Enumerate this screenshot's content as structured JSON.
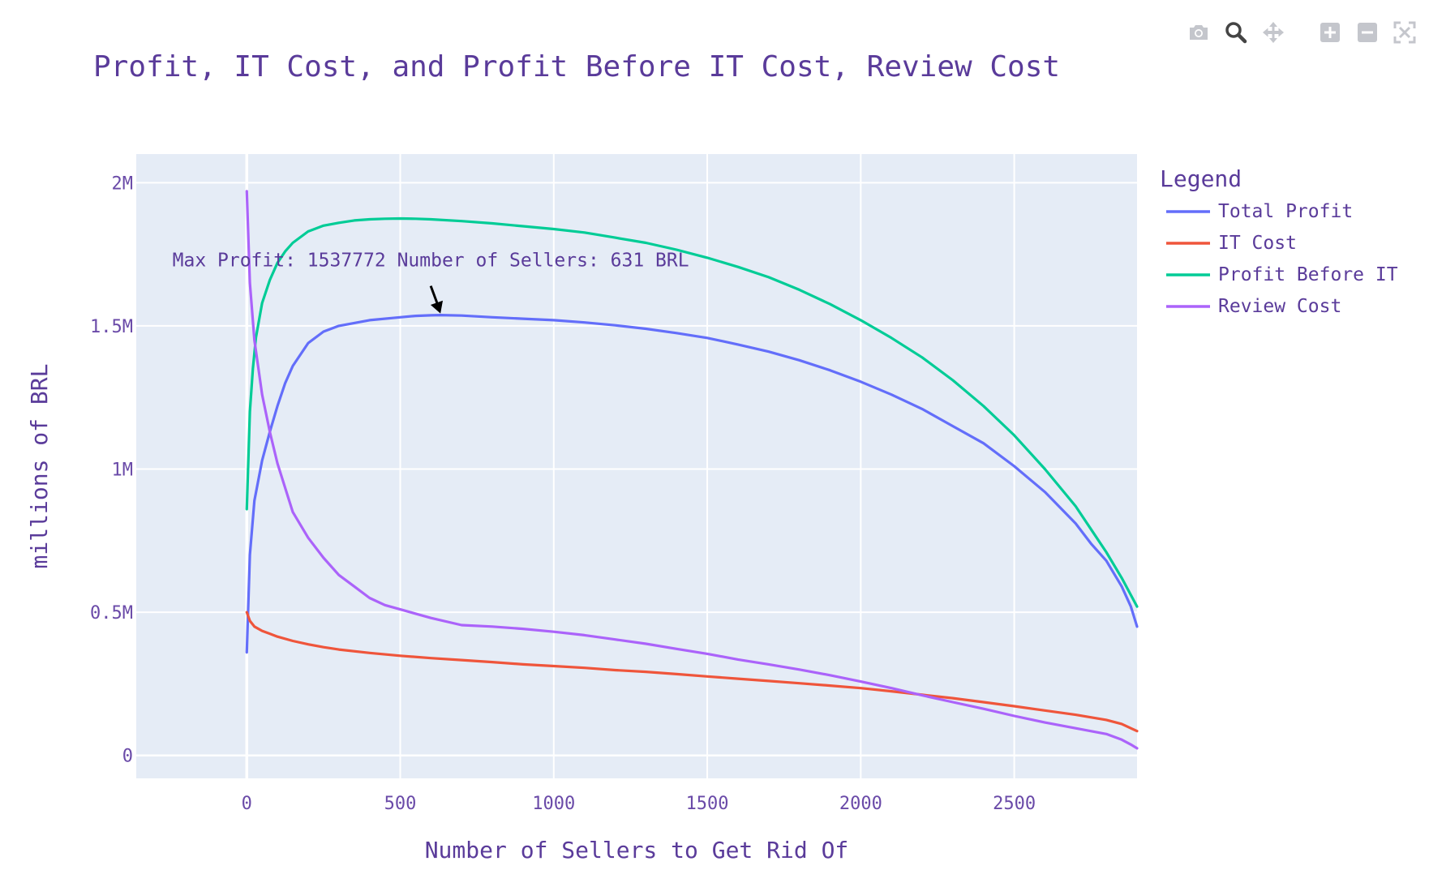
{
  "modebar": {
    "icons": [
      "camera-icon",
      "zoom-icon",
      "pan-icon",
      "zoom-in-icon",
      "zoom-out-icon",
      "autoscale-icon"
    ]
  },
  "chart_data": {
    "type": "line",
    "title": "Profit, IT Cost, and Profit Before IT Cost, Review Cost",
    "xlabel": "Number of Sellers to Get Rid Of",
    "ylabel": "millions of BRL",
    "xlim": [
      -360,
      2900
    ],
    "ylim": [
      -80000,
      2100000
    ],
    "grid": true,
    "x_ticks": [
      {
        "value": 0,
        "label": "0"
      },
      {
        "value": 500,
        "label": "500"
      },
      {
        "value": 1000,
        "label": "1000"
      },
      {
        "value": 1500,
        "label": "1500"
      },
      {
        "value": 2000,
        "label": "2000"
      },
      {
        "value": 2500,
        "label": "2500"
      }
    ],
    "y_ticks": [
      {
        "value": 0,
        "label": "0"
      },
      {
        "value": 500000,
        "label": "0.5M"
      },
      {
        "value": 1000000,
        "label": "1M"
      },
      {
        "value": 1500000,
        "label": "1.5M"
      },
      {
        "value": 2000000,
        "label": "2M"
      }
    ],
    "legend": {
      "title": "Legend",
      "position": "right"
    },
    "series": [
      {
        "name": "Total Profit",
        "color": "#636efa",
        "x": [
          0,
          10,
          25,
          50,
          75,
          100,
          125,
          150,
          200,
          250,
          300,
          350,
          400,
          500,
          550,
          600,
          631,
          700,
          800,
          900,
          1000,
          1100,
          1200,
          1300,
          1400,
          1500,
          1600,
          1700,
          1800,
          1900,
          2000,
          2100,
          2200,
          2300,
          2400,
          2500,
          2600,
          2700,
          2750,
          2800,
          2850,
          2880,
          2900
        ],
        "y": [
          360000,
          700000,
          890000,
          1030000,
          1130000,
          1220000,
          1300000,
          1360000,
          1440000,
          1480000,
          1500000,
          1510000,
          1520000,
          1530000,
          1535000,
          1537000,
          1537772,
          1536000,
          1530000,
          1525000,
          1520000,
          1512000,
          1502000,
          1490000,
          1475000,
          1458000,
          1435000,
          1410000,
          1380000,
          1345000,
          1305000,
          1260000,
          1210000,
          1150000,
          1090000,
          1010000,
          920000,
          810000,
          740000,
          680000,
          590000,
          520000,
          450000
        ]
      },
      {
        "name": "IT Cost",
        "color": "#ef553b",
        "x": [
          0,
          10,
          25,
          50,
          75,
          100,
          150,
          200,
          250,
          300,
          400,
          500,
          600,
          700,
          800,
          900,
          1000,
          1100,
          1200,
          1300,
          1400,
          1500,
          1600,
          1700,
          1800,
          1900,
          2000,
          2100,
          2200,
          2300,
          2400,
          2500,
          2600,
          2700,
          2800,
          2850,
          2900
        ],
        "y": [
          500000,
          470000,
          450000,
          435000,
          425000,
          415000,
          400000,
          388000,
          378000,
          370000,
          358000,
          348000,
          340000,
          333000,
          326000,
          318000,
          312000,
          306000,
          298000,
          292000,
          284000,
          276000,
          268000,
          260000,
          252000,
          244000,
          235000,
          224000,
          212000,
          200000,
          186000,
          172000,
          157000,
          142000,
          124000,
          110000,
          85000
        ]
      },
      {
        "name": "Profit Before IT",
        "color": "#00cc96",
        "x": [
          0,
          10,
          20,
          30,
          50,
          75,
          100,
          125,
          150,
          200,
          250,
          300,
          350,
          400,
          450,
          500,
          550,
          600,
          700,
          800,
          900,
          1000,
          1100,
          1200,
          1300,
          1400,
          1500,
          1600,
          1700,
          1800,
          1900,
          2000,
          2100,
          2200,
          2300,
          2400,
          2500,
          2600,
          2700,
          2750,
          2800,
          2850,
          2900
        ],
        "y": [
          860000,
          1200000,
          1350000,
          1460000,
          1580000,
          1660000,
          1720000,
          1760000,
          1790000,
          1830000,
          1850000,
          1860000,
          1868000,
          1872000,
          1874000,
          1875000,
          1874000,
          1872000,
          1866000,
          1858000,
          1848000,
          1838000,
          1826000,
          1808000,
          1790000,
          1766000,
          1738000,
          1706000,
          1670000,
          1626000,
          1576000,
          1520000,
          1458000,
          1390000,
          1310000,
          1220000,
          1118000,
          1000000,
          870000,
          790000,
          710000,
          620000,
          520000
        ]
      },
      {
        "name": "Review Cost",
        "color": "#ab63fa",
        "x": [
          0,
          10,
          25,
          50,
          75,
          100,
          150,
          200,
          250,
          300,
          350,
          400,
          450,
          500,
          600,
          700,
          800,
          900,
          1000,
          1100,
          1200,
          1300,
          1400,
          1500,
          1600,
          1700,
          1800,
          1900,
          2000,
          2100,
          2200,
          2300,
          2400,
          2500,
          2600,
          2700,
          2800,
          2850,
          2880,
          2900
        ],
        "y": [
          1970000,
          1650000,
          1450000,
          1260000,
          1130000,
          1020000,
          850000,
          760000,
          690000,
          630000,
          590000,
          550000,
          525000,
          510000,
          480000,
          455000,
          450000,
          442000,
          432000,
          420000,
          405000,
          390000,
          372000,
          355000,
          335000,
          318000,
          300000,
          280000,
          258000,
          235000,
          210000,
          186000,
          163000,
          138000,
          115000,
          95000,
          75000,
          55000,
          38000,
          25000
        ]
      }
    ],
    "annotations": [
      {
        "text": "Max Profit: 1537772 Number of Sellers: 631 BRL",
        "x": 631,
        "y": 1537772
      }
    ]
  }
}
